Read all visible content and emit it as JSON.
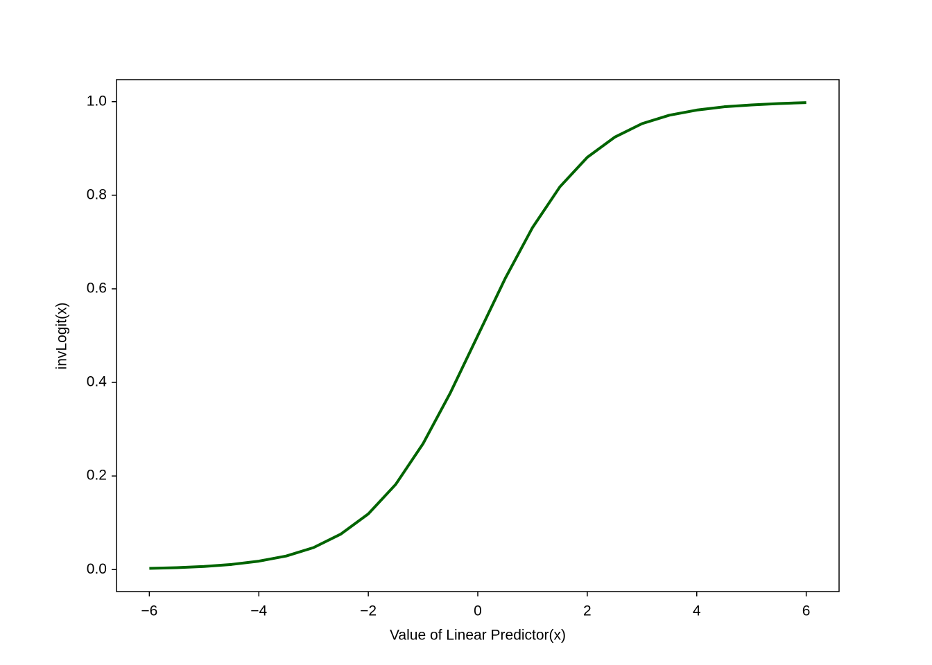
{
  "chart_data": {
    "type": "line",
    "x_label": "Value of Linear Predictor(x)",
    "y_label": "invLogit(x)",
    "x": [
      -6,
      -5.5,
      -5,
      -4.5,
      -4,
      -3.5,
      -3,
      -2.5,
      -2,
      -1.5,
      -1,
      -0.5,
      0,
      0.5,
      1,
      1.5,
      2,
      2.5,
      3,
      3.5,
      4,
      4.5,
      5,
      5.5,
      6
    ],
    "values": [
      0.0025,
      0.0041,
      0.0067,
      0.011,
      0.018,
      0.029,
      0.047,
      0.076,
      0.119,
      0.182,
      0.269,
      0.378,
      0.5,
      0.622,
      0.731,
      0.818,
      0.881,
      0.924,
      0.953,
      0.971,
      0.982,
      0.989,
      0.993,
      0.996,
      0.998
    ],
    "color": "#006400",
    "xlim": [
      -6.6,
      6.6
    ],
    "ylim": [
      -0.047,
      1.047
    ],
    "xticks": [
      {
        "value": -6,
        "label": "−6"
      },
      {
        "value": -4,
        "label": "−4"
      },
      {
        "value": -2,
        "label": "−2"
      },
      0,
      2,
      4,
      6
    ],
    "yticks": [
      {
        "value": 0,
        "label": "0.0"
      },
      0.2,
      0.4,
      0.6,
      0.8,
      {
        "value": 1,
        "label": "1.0"
      }
    ],
    "grid": false
  }
}
